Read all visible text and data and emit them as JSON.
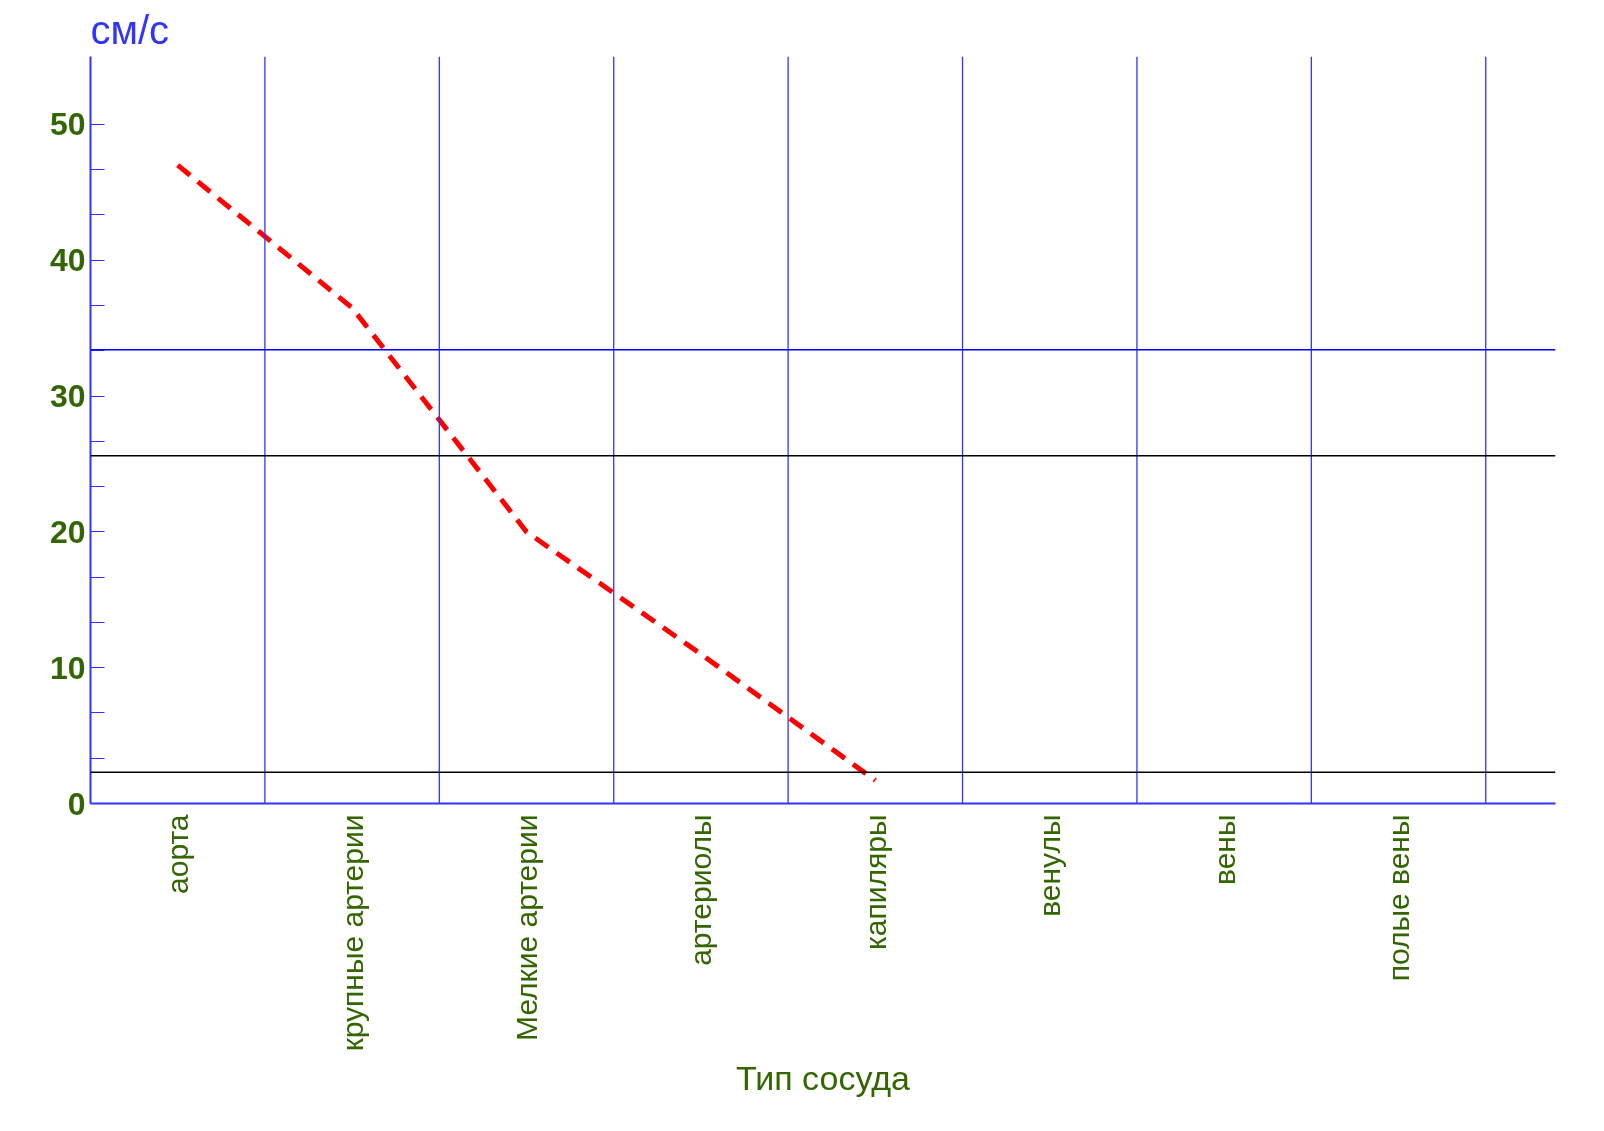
{
  "chart_data": {
    "type": "line",
    "xlabel": "Тип сосуда",
    "ylabel": "см/с",
    "categories": [
      "аорта",
      "крупные артерии",
      "Мелкие артерии",
      "артериолы",
      "капиляры",
      "венулы",
      "вены",
      "полые вены"
    ],
    "series": [
      {
        "color": "#ff0000",
        "values": [
          47,
          36.5,
          20,
          11,
          1.7,
          null,
          null,
          null
        ]
      }
    ],
    "line_style": "dashed",
    "marker": "none",
    "ylim": [
      0,
      55
    ],
    "yticks": [
      0,
      {
        "value": 3.33,
        "label": null
      },
      {
        "value": 6.67,
        "label": null
      },
      10,
      {
        "value": 13.33,
        "label": null
      },
      {
        "value": 16.67,
        "label": null
      },
      20,
      {
        "value": 23.33,
        "label": null
      },
      {
        "value": 26.67,
        "label": null
      },
      30,
      {
        "value": 33.33,
        "label": null
      },
      {
        "value": 36.67,
        "label": null
      },
      40,
      {
        "value": 43.33,
        "label": null
      },
      {
        "value": 46.67,
        "label": null
      },
      50
    ],
    "grid": "x",
    "ref_lines": [
      {
        "axis": "y",
        "value": 33.4,
        "color": "#0000ff"
      },
      {
        "axis": "y",
        "value": 25.6,
        "color": "#000000"
      },
      {
        "axis": "y",
        "value": 2.3,
        "color": "#000000"
      }
    ]
  }
}
